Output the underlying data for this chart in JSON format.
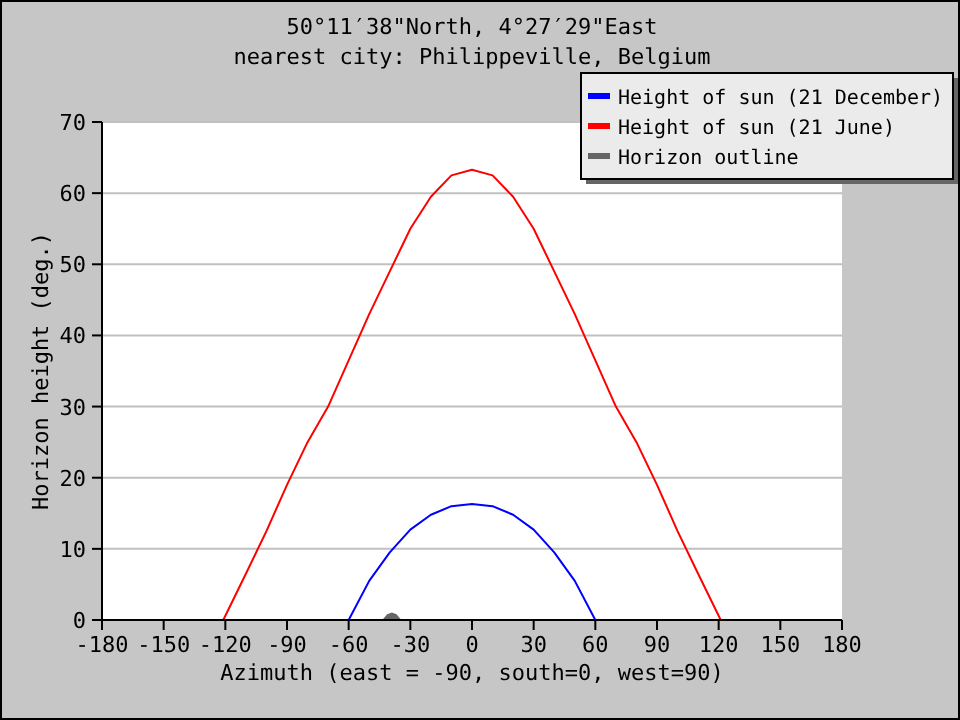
{
  "chart_data": {
    "type": "line",
    "title": "50°11′38\"North, 4°27′29\"East",
    "subtitle": "nearest city: Philippeville, Belgium",
    "xlabel": "Azimuth (east = -90, south=0, west=90)",
    "ylabel": "Horizon height (deg.)",
    "xlim": [
      -180,
      180
    ],
    "xticks": [
      -180,
      -150,
      -120,
      -90,
      -60,
      -30,
      0,
      30,
      60,
      90,
      120,
      150,
      180
    ],
    "ylim": [
      0,
      70
    ],
    "yticks": [
      0,
      10,
      20,
      30,
      40,
      50,
      60,
      70
    ],
    "grid": "y",
    "legend": "top right",
    "series": [
      {
        "name": "Height of sun (21 December)",
        "color": "#0000ff",
        "x": [
          -60,
          -50,
          -40,
          -30,
          -20,
          -10,
          0,
          10,
          20,
          30,
          40,
          50,
          60
        ],
        "values": [
          0,
          5.5,
          9.5,
          12.7,
          14.8,
          16,
          16.3,
          16,
          14.8,
          12.7,
          9.5,
          5.5,
          0
        ]
      },
      {
        "name": "Height of sun (21 June)",
        "color": "#ff0000",
        "x": [
          -121,
          -110,
          -100,
          -90,
          -80,
          -70,
          -60,
          -50,
          -40,
          -30,
          -20,
          -10,
          0,
          10,
          20,
          30,
          40,
          50,
          60,
          70,
          80,
          90,
          100,
          110,
          121
        ],
        "values": [
          0,
          6.5,
          12.5,
          19,
          25,
          30,
          36.5,
          43,
          49,
          55,
          59.5,
          62.5,
          63.3,
          62.5,
          59.5,
          55,
          49,
          43,
          36.5,
          30,
          25,
          19,
          12.5,
          6.5,
          0
        ]
      },
      {
        "name": "Horizon outline",
        "type": "area",
        "color": "#666666",
        "x": [
          -43,
          -41,
          -39,
          -37,
          -35
        ],
        "values": [
          0,
          0.7,
          0.9,
          0.7,
          0
        ]
      }
    ]
  }
}
